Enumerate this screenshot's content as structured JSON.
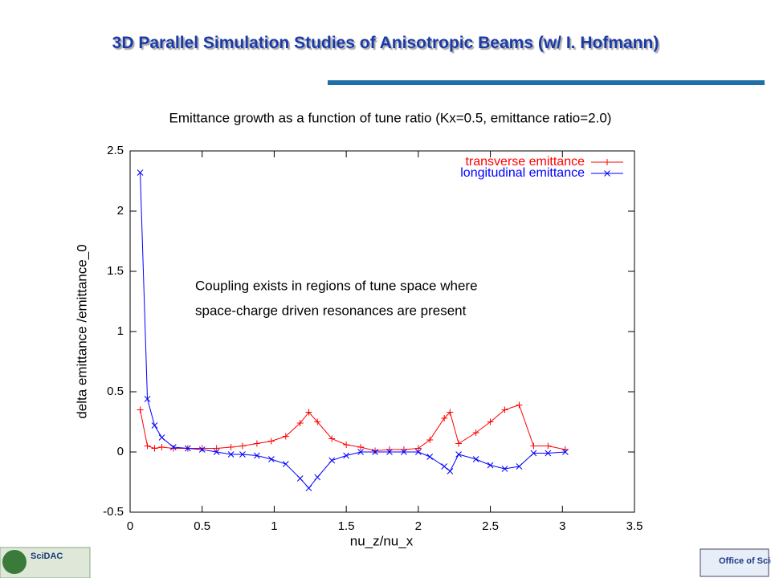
{
  "header": {
    "title": "3D Parallel Simulation Studies of Anisotropic  Beams (w/ I. Hofmann)"
  },
  "chart_data": {
    "type": "line",
    "title": "Emittance growth as a function of tune ratio (Kx=0.5, emittance ratio=2.0)",
    "x_label": "nu_z/nu_x",
    "y_label": "delta emittance /emittance_0",
    "annotation": [
      "Coupling exists in regions of tune space where",
      "space-charge driven resonances are present"
    ],
    "x": [
      0.07,
      0.12,
      0.17,
      0.22,
      0.3,
      0.4,
      0.5,
      0.6,
      0.7,
      0.78,
      0.88,
      0.98,
      1.08,
      1.18,
      1.24,
      1.3,
      1.4,
      1.5,
      1.6,
      1.7,
      1.8,
      1.9,
      2.0,
      2.08,
      2.18,
      2.22,
      2.28,
      2.4,
      2.5,
      2.6,
      2.7,
      2.8,
      2.9,
      3.02
    ],
    "series": [
      {
        "name": "transverse emittance",
        "color": "#ff0000",
        "marker": "+",
        "values": [
          0.35,
          0.05,
          0.03,
          0.04,
          0.03,
          0.03,
          0.03,
          0.03,
          0.04,
          0.05,
          0.07,
          0.09,
          0.13,
          0.24,
          0.33,
          0.25,
          0.11,
          0.06,
          0.04,
          0.01,
          0.02,
          0.02,
          0.03,
          0.1,
          0.28,
          0.33,
          0.07,
          0.16,
          0.25,
          0.35,
          0.39,
          0.05,
          0.05,
          0.02
        ]
      },
      {
        "name": "longitudinal emittance",
        "color": "#0000ff",
        "marker": "x",
        "values": [
          2.32,
          0.44,
          0.22,
          0.12,
          0.04,
          0.03,
          0.02,
          0.0,
          -0.02,
          -0.02,
          -0.03,
          -0.06,
          -0.1,
          -0.22,
          -0.3,
          -0.21,
          -0.07,
          -0.03,
          0.0,
          0.0,
          0.0,
          0.0,
          0.0,
          -0.04,
          -0.12,
          -0.16,
          -0.02,
          -0.06,
          -0.11,
          -0.14,
          -0.12,
          -0.01,
          -0.01,
          0.0
        ]
      }
    ],
    "xlim": [
      0,
      3.5
    ],
    "xticks": [
      0,
      0.5,
      1,
      1.5,
      2,
      2.5,
      3,
      3.5
    ],
    "ylim": [
      -0.5,
      2.5
    ],
    "yticks": [
      -0.5,
      0,
      0.5,
      1,
      1.5,
      2,
      2.5
    ],
    "legend": "upper right",
    "grid": false
  },
  "footer": {
    "left_logo": "SciDAC",
    "right_logo": "Office of Science"
  }
}
